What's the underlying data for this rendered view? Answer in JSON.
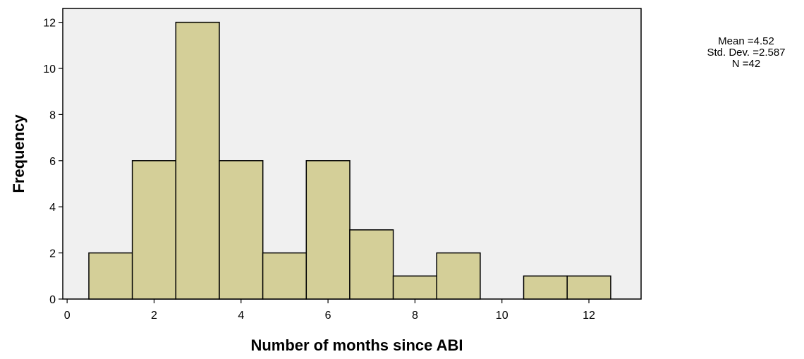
{
  "chart_data": {
    "type": "bar",
    "title": "",
    "xlabel": "Number of months since ABI",
    "ylabel": "Frequency",
    "bin_width": 1,
    "bin_centers": [
      1,
      2,
      3,
      4,
      5,
      6,
      7,
      8,
      9,
      10,
      11,
      12
    ],
    "values": [
      2,
      6,
      12,
      6,
      2,
      6,
      3,
      1,
      2,
      0,
      1,
      1
    ],
    "xlim": [
      -0.1,
      13.2
    ],
    "ylim": [
      0,
      12.6
    ],
    "x_ticks": [
      0,
      2,
      4,
      6,
      8,
      10,
      12
    ],
    "y_ticks": [
      0,
      2,
      4,
      6,
      8,
      10,
      12
    ],
    "grid": false,
    "colors": {
      "bar_fill": "#d4cf98",
      "bar_stroke": "#000000",
      "plot_background": "#f0f0f0"
    },
    "stats": {
      "mean": "Mean =4.52",
      "std_dev": "Std. Dev. =2.587",
      "n": "N =42"
    }
  }
}
